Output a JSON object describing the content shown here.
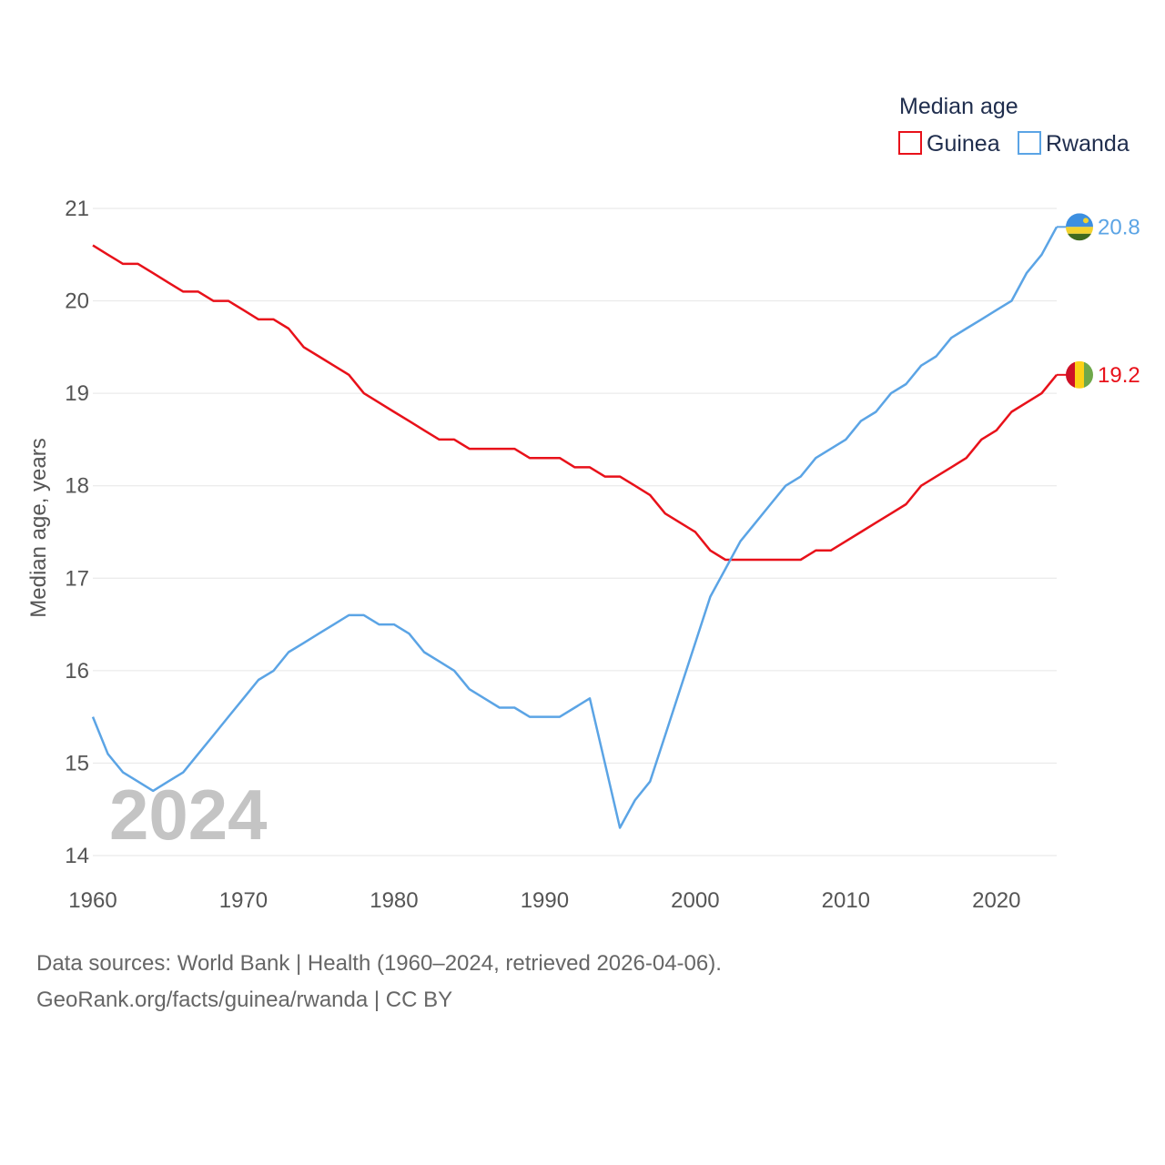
{
  "chart_data": {
    "type": "line",
    "title": "",
    "xlabel": "",
    "ylabel": "Median age, years",
    "xlim": [
      1960,
      2024
    ],
    "ylim": [
      14,
      21
    ],
    "x_ticks": [
      1960,
      1970,
      1980,
      1990,
      2000,
      2010,
      2020
    ],
    "y_ticks": [
      14,
      15,
      16,
      17,
      18,
      19,
      20,
      21
    ],
    "grid": true,
    "legend": {
      "title": "Median age",
      "placement": "top-right"
    },
    "year_label": "2024",
    "x": [
      1960,
      1961,
      1962,
      1963,
      1964,
      1965,
      1966,
      1967,
      1968,
      1969,
      1970,
      1971,
      1972,
      1973,
      1974,
      1975,
      1976,
      1977,
      1978,
      1979,
      1980,
      1981,
      1982,
      1983,
      1984,
      1985,
      1986,
      1987,
      1988,
      1989,
      1990,
      1991,
      1992,
      1993,
      1994,
      1995,
      1996,
      1997,
      1998,
      1999,
      2000,
      2001,
      2002,
      2003,
      2004,
      2005,
      2006,
      2007,
      2008,
      2009,
      2010,
      2011,
      2012,
      2013,
      2014,
      2015,
      2016,
      2017,
      2018,
      2019,
      2020,
      2021,
      2022,
      2023,
      2024
    ],
    "series": [
      {
        "name": "Guinea",
        "color": "#e8111a",
        "end_label": "19.2",
        "flag": "guinea-flag-icon",
        "values": [
          20.6,
          20.5,
          20.4,
          20.4,
          20.3,
          20.2,
          20.1,
          20.1,
          20.0,
          20.0,
          19.9,
          19.8,
          19.8,
          19.7,
          19.5,
          19.4,
          19.3,
          19.2,
          19.0,
          18.9,
          18.8,
          18.7,
          18.6,
          18.5,
          18.5,
          18.4,
          18.4,
          18.4,
          18.4,
          18.3,
          18.3,
          18.3,
          18.2,
          18.2,
          18.1,
          18.1,
          18.0,
          17.9,
          17.7,
          17.6,
          17.5,
          17.3,
          17.2,
          17.2,
          17.2,
          17.2,
          17.2,
          17.2,
          17.3,
          17.3,
          17.4,
          17.5,
          17.6,
          17.7,
          17.8,
          18.0,
          18.1,
          18.2,
          18.3,
          18.5,
          18.6,
          18.8,
          18.9,
          19.0,
          19.2
        ]
      },
      {
        "name": "Rwanda",
        "color": "#5ba4e5",
        "end_label": "20.8",
        "flag": "rwanda-flag-icon",
        "values": [
          15.5,
          15.1,
          14.9,
          14.8,
          14.7,
          14.8,
          14.9,
          15.1,
          15.3,
          15.5,
          15.7,
          15.9,
          16.0,
          16.2,
          16.3,
          16.4,
          16.5,
          16.6,
          16.6,
          16.5,
          16.5,
          16.4,
          16.2,
          16.1,
          16.0,
          15.8,
          15.7,
          15.6,
          15.6,
          15.5,
          15.5,
          15.5,
          15.6,
          15.7,
          15.0,
          14.3,
          14.6,
          14.8,
          15.3,
          15.8,
          16.3,
          16.8,
          17.1,
          17.4,
          17.6,
          17.8,
          18.0,
          18.1,
          18.3,
          18.4,
          18.5,
          18.7,
          18.8,
          19.0,
          19.1,
          19.3,
          19.4,
          19.6,
          19.7,
          19.8,
          19.9,
          20.0,
          20.3,
          20.5,
          20.8
        ]
      }
    ]
  },
  "footer": {
    "sources_line": "Data sources: World Bank | Health (1960–2024, retrieved 2026-04-06).",
    "credit_line": "GeoRank.org/facts/guinea/rwanda | CC BY"
  }
}
